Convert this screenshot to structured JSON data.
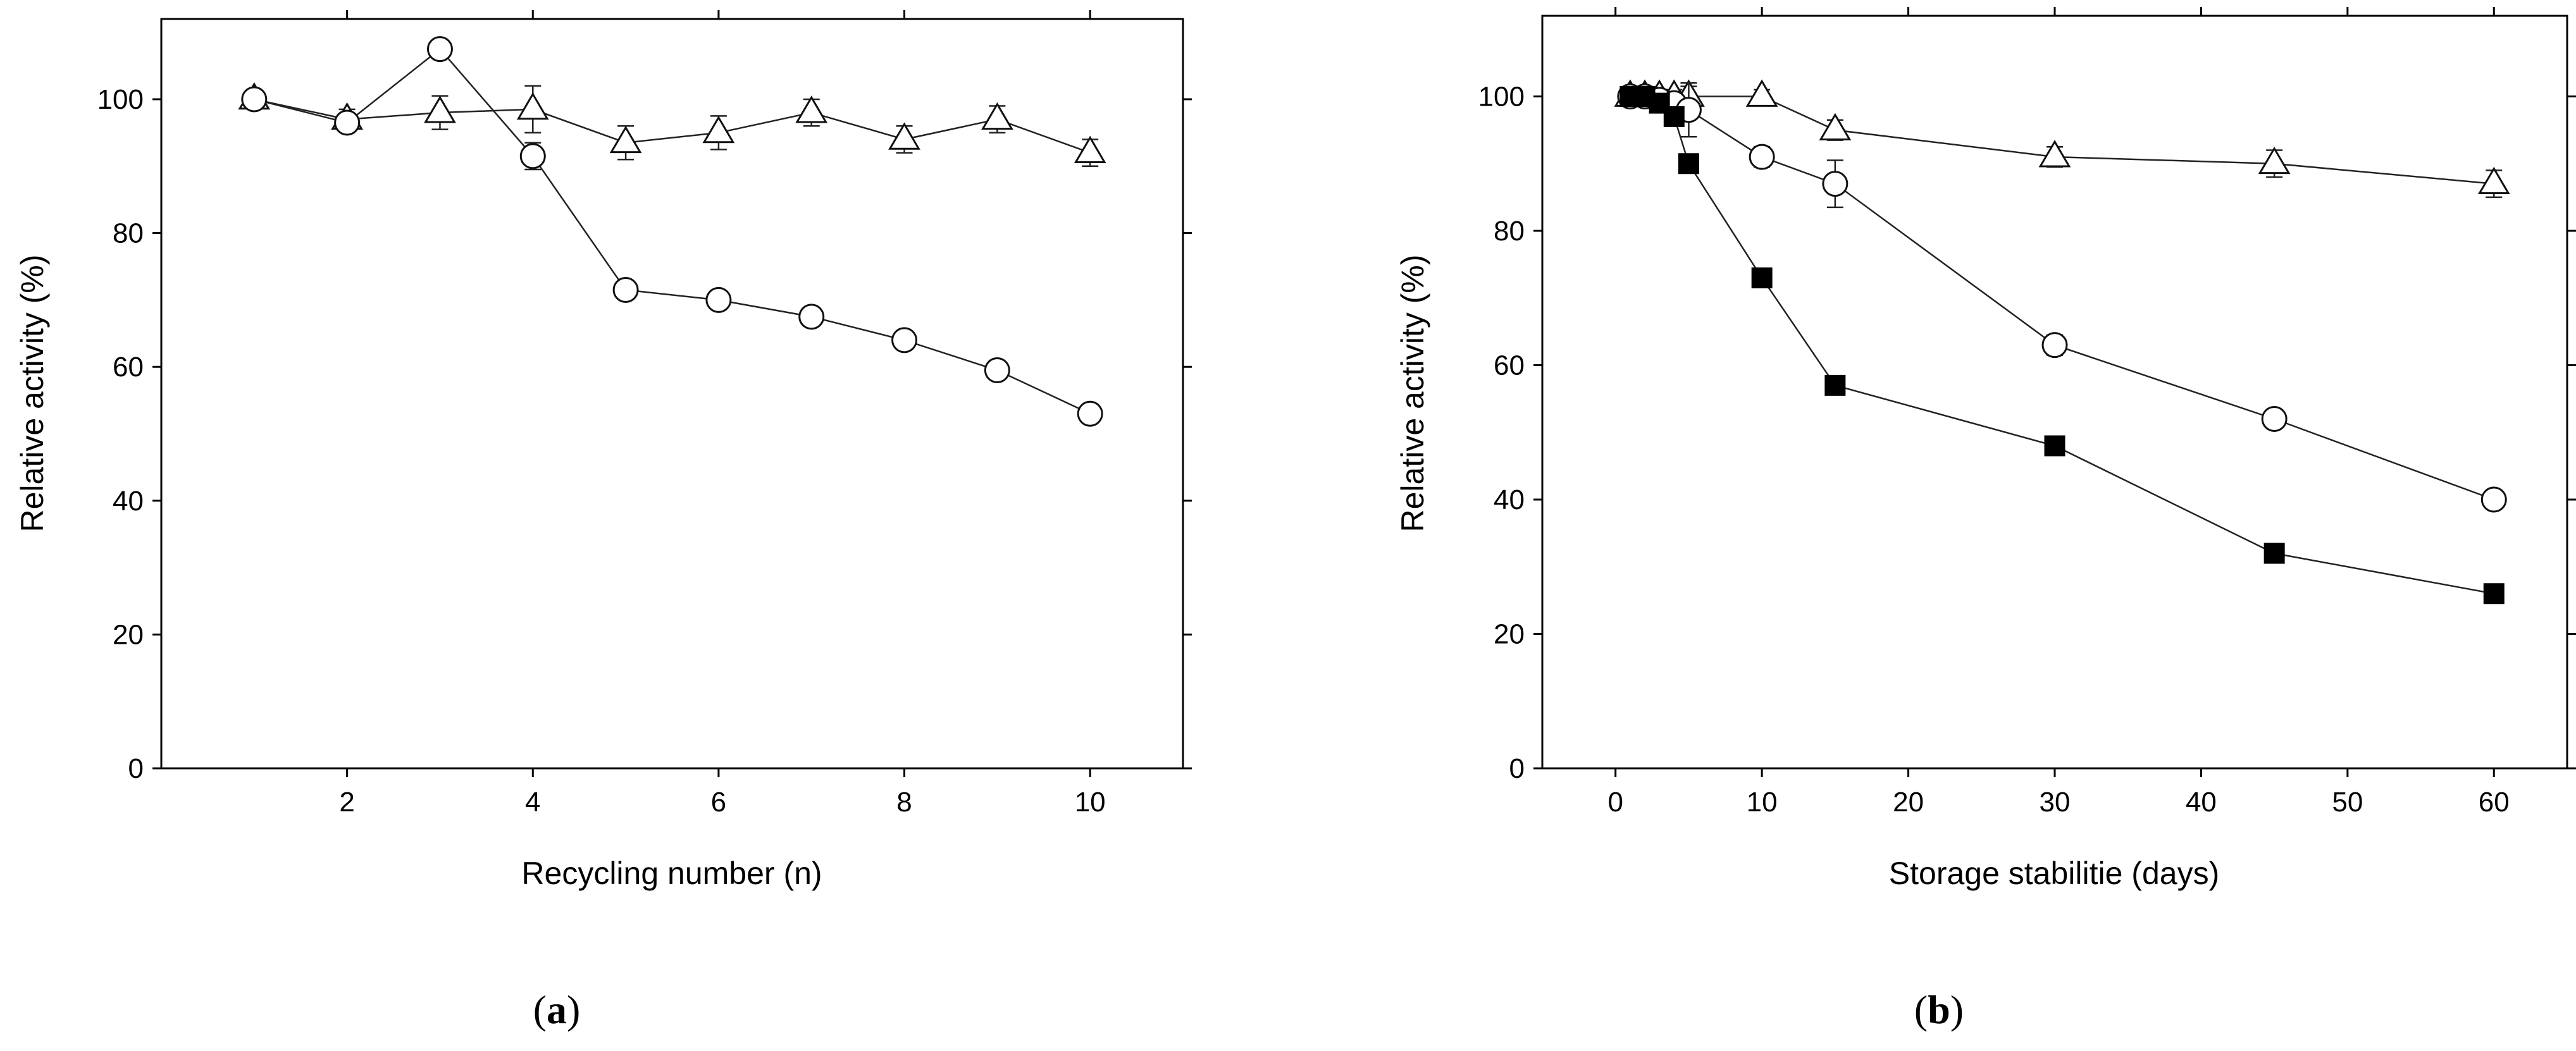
{
  "chart_data": [
    {
      "type": "line",
      "panel_label": "a",
      "xlabel": "Recycling number (n)",
      "ylabel": "Relative activity (%)",
      "xlim": [
        0,
        11
      ],
      "ylim": [
        0,
        112
      ],
      "xticks": [
        2,
        4,
        6,
        8,
        10
      ],
      "yticks": [
        0,
        20,
        40,
        60,
        80,
        100
      ],
      "grid": false,
      "series": [
        {
          "name": "triangle",
          "marker": "triangle-open",
          "x": [
            1,
            2,
            3,
            4,
            5,
            6,
            7,
            8,
            9,
            10
          ],
          "y": [
            100,
            97,
            98,
            98.5,
            93.5,
            95,
            98,
            94,
            97,
            92
          ],
          "err": [
            1,
            1.5,
            2.5,
            3.5,
            2.5,
            2.5,
            2,
            2,
            2,
            2
          ]
        },
        {
          "name": "circle",
          "marker": "circle-open",
          "x": [
            1,
            2,
            3,
            4,
            5,
            6,
            7,
            8,
            9,
            10
          ],
          "y": [
            100,
            96.5,
            107.5,
            91.5,
            71.5,
            70,
            67.5,
            64,
            59.5,
            53
          ],
          "err": [
            1,
            1,
            0.5,
            2,
            1,
            1,
            1,
            1,
            1,
            1
          ]
        }
      ]
    },
    {
      "type": "line",
      "panel_label": "b",
      "xlabel": "Storage stabilitie (days)",
      "ylabel": "Relative activity (%)",
      "xlim": [
        -5,
        65
      ],
      "ylim": [
        0,
        112
      ],
      "xticks": [
        0,
        10,
        20,
        30,
        40,
        50,
        60
      ],
      "yticks": [
        0,
        20,
        40,
        60,
        80,
        100
      ],
      "grid": false,
      "series": [
        {
          "name": "triangle",
          "marker": "triangle-open",
          "x": [
            1,
            2,
            3,
            4,
            5,
            10,
            15,
            30,
            45,
            60
          ],
          "y": [
            100,
            100,
            100,
            100,
            100,
            100,
            95,
            91,
            90,
            87
          ],
          "err": [
            1,
            1,
            1,
            1,
            1.5,
            1,
            1.5,
            1.5,
            2,
            2
          ]
        },
        {
          "name": "circle",
          "marker": "circle-open",
          "x": [
            1,
            2,
            3,
            4,
            5,
            10,
            15,
            30,
            45,
            60
          ],
          "y": [
            100,
            100,
            99.5,
            99,
            98,
            91,
            87,
            63,
            52,
            40
          ],
          "err": [
            0.5,
            0.5,
            0.5,
            1,
            4,
            1.5,
            3.5,
            1.5,
            1,
            1
          ]
        },
        {
          "name": "square",
          "marker": "square-filled",
          "x": [
            1,
            2,
            3,
            4,
            5,
            10,
            15,
            30,
            45,
            60
          ],
          "y": [
            100,
            100,
            99,
            97,
            90,
            73,
            57,
            48,
            32,
            26
          ],
          "err": [
            0,
            0,
            0,
            0,
            0,
            0,
            0,
            0,
            0,
            0
          ]
        }
      ]
    }
  ]
}
